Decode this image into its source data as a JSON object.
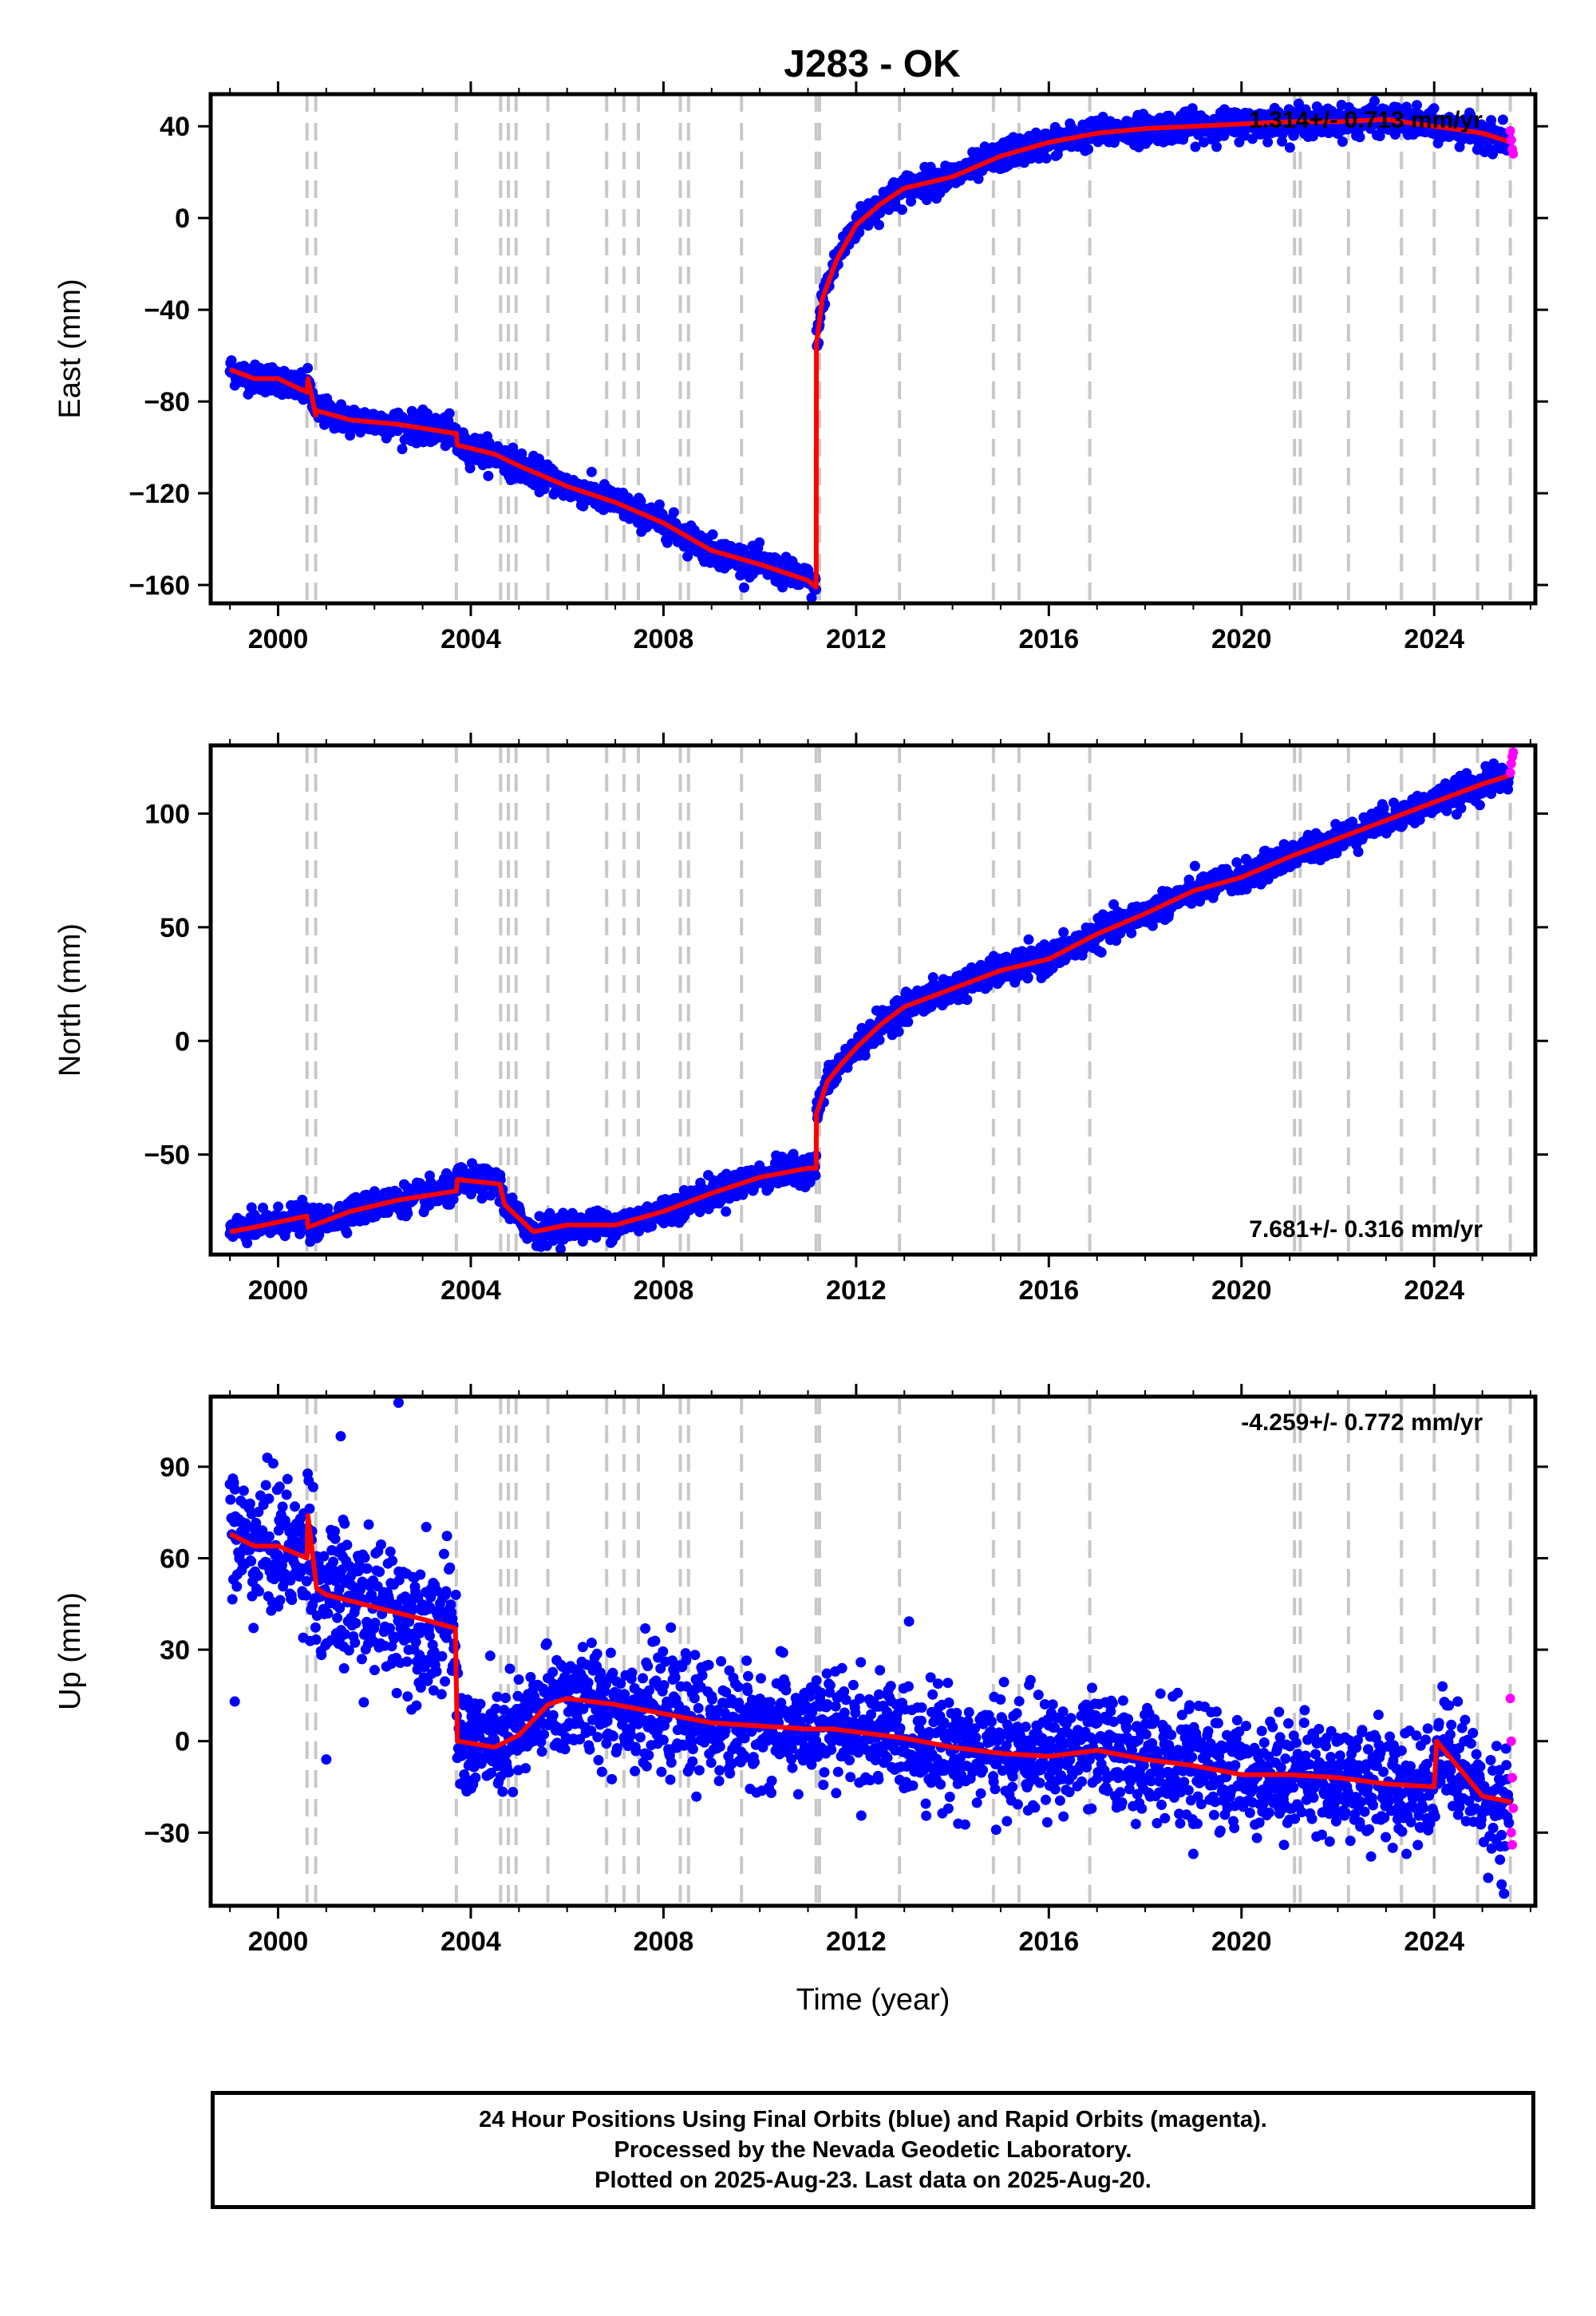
{
  "title": "J283 - OK",
  "colors": {
    "final_orbit_points": "#0000ff",
    "rapid_orbit_points": "#ff00ff",
    "model_line": "#ff0000",
    "event_lines": "#c8c8c8"
  },
  "event_lines": [
    2000.6,
    2000.78,
    2003.7,
    2004.62,
    2004.78,
    2004.94,
    2005.6,
    2006.82,
    2007.18,
    2007.48,
    2008.35,
    2008.52,
    2009.62,
    2011.17,
    2011.24,
    2012.9,
    2014.85,
    2015.38,
    2016.85,
    2021.1,
    2021.22,
    2022.22,
    2023.32,
    2024.0,
    2024.9,
    2025.58
  ],
  "footer": {
    "line1": "24 Hour Positions Using Final Orbits (blue) and Rapid Orbits (magenta).",
    "line2": "Processed by the Nevada Geodetic Laboratory.",
    "line3": "Plotted on 2025-Aug-23. Last data on 2025-Aug-20."
  },
  "chart_data": [
    {
      "type": "scatter",
      "panel": "east",
      "ylabel": "East (mm)",
      "xlabel": "",
      "xlim": [
        1998.6,
        2026.1
      ],
      "ylim": [
        -168,
        54
      ],
      "xticks": [
        2000,
        2004,
        2008,
        2012,
        2016,
        2020,
        2024
      ],
      "yticks": [
        -160,
        -120,
        -80,
        -40,
        0,
        40
      ],
      "velocity_label": "1.314+/- 0.713 mm/yr",
      "velocity_label_position": "top-right",
      "noise": 3,
      "outliers": [],
      "series": [
        {
          "role": "final_orbits_and_model",
          "model_x": [
            1999.0,
            1999.5,
            2000.0,
            2000.6,
            2000.62,
            2000.78,
            2000.8,
            2001.5,
            2002.5,
            2003.7,
            2003.72,
            2004.5,
            2005.0,
            2006.0,
            2007.0,
            2008.0,
            2009.0,
            2010.0,
            2011.0,
            2011.17,
            2011.175,
            2011.3,
            2011.6,
            2012.0,
            2012.5,
            2013.0,
            2014.0,
            2015.0,
            2016.0,
            2017.0,
            2018.0,
            2019.0,
            2020.0,
            2021.0,
            2022.0,
            2023.0,
            2024.0,
            2025.0,
            2025.6
          ],
          "model_y": [
            -66,
            -70,
            -70,
            -76,
            -70,
            -86,
            -84,
            -88,
            -90,
            -94,
            -99,
            -103,
            -108,
            -117,
            -124,
            -133,
            -145,
            -151,
            -158,
            -161,
            -55,
            -35,
            -18,
            -3,
            6,
            13,
            18,
            27,
            33,
            37,
            39,
            40,
            41,
            42,
            42,
            43,
            40,
            37,
            33
          ],
          "start": 1999.0,
          "end": 2025.55
        },
        {
          "role": "rapid_orbits",
          "x": [
            2025.58,
            2025.6,
            2025.62,
            2025.64
          ],
          "y": [
            38,
            34,
            30,
            28
          ]
        }
      ]
    },
    {
      "type": "scatter",
      "panel": "north",
      "ylabel": "North (mm)",
      "xlabel": "",
      "xlim": [
        1998.6,
        2026.1
      ],
      "ylim": [
        -94,
        130
      ],
      "xticks": [
        2000,
        2004,
        2008,
        2012,
        2016,
        2020,
        2024
      ],
      "yticks": [
        -50,
        0,
        50,
        100
      ],
      "velocity_label": "7.681+/- 0.316 mm/yr",
      "velocity_label_position": "bottom-right",
      "noise": 3,
      "outliers": [],
      "series": [
        {
          "role": "final_orbits_and_model",
          "model_x": [
            1999.0,
            1999.5,
            2000.6,
            2000.62,
            2001.5,
            2002.5,
            2003.7,
            2003.72,
            2004.6,
            2004.7,
            2005.3,
            2006.0,
            2007.0,
            2008.0,
            2009.0,
            2010.0,
            2011.0,
            2011.17,
            2011.175,
            2011.4,
            2011.7,
            2012.0,
            2012.5,
            2013.0,
            2014.0,
            2015.0,
            2016.0,
            2017.0,
            2018.0,
            2019.0,
            2020.0,
            2021.0,
            2022.0,
            2023.0,
            2024.0,
            2025.0,
            2025.6
          ],
          "model_y": [
            -84,
            -82,
            -77,
            -82,
            -75,
            -70,
            -66,
            -61,
            -63,
            -72,
            -84,
            -81,
            -81,
            -75,
            -67,
            -60,
            -56,
            -56,
            -32,
            -18,
            -10,
            -3,
            7,
            15,
            23,
            31,
            36,
            47,
            56,
            66,
            72,
            81,
            89,
            97,
            105,
            113,
            117
          ],
          "start": 1999.0,
          "end": 2025.55
        },
        {
          "role": "rapid_orbits",
          "x": [
            2025.58,
            2025.6,
            2025.62,
            2025.64
          ],
          "y": [
            118,
            122,
            125,
            127
          ]
        }
      ]
    },
    {
      "type": "scatter",
      "panel": "up",
      "ylabel": "Up (mm)",
      "xlabel": "Time (year)",
      "xlim": [
        1998.6,
        2026.1
      ],
      "ylim": [
        -54,
        113
      ],
      "xticks": [
        2000,
        2004,
        2008,
        2012,
        2016,
        2020,
        2024
      ],
      "yticks": [
        -30,
        0,
        30,
        60,
        90
      ],
      "velocity_label": "-4.259+/- 0.772 mm/yr",
      "velocity_label_position": "top-right",
      "noise": 9,
      "outliers": [
        [
          1999.1,
          13
        ],
        [
          2001.0,
          -6
        ],
        [
          2001.3,
          100
        ],
        [
          2002.5,
          111
        ],
        [
          2019.0,
          -37
        ],
        [
          2025.4,
          -47
        ],
        [
          2025.45,
          -50
        ]
      ],
      "series": [
        {
          "role": "final_orbits_and_model",
          "model_x": [
            1999.0,
            1999.5,
            2000.0,
            2000.6,
            2000.62,
            2000.8,
            2001.0,
            2002.0,
            2003.0,
            2003.68,
            2003.72,
            2004.5,
            2005.0,
            2005.6,
            2006.0,
            2007.0,
            2008.0,
            2009.0,
            2010.0,
            2011.0,
            2011.5,
            2012.0,
            2013.0,
            2014.0,
            2015.0,
            2016.0,
            2017.0,
            2018.0,
            2019.0,
            2020.0,
            2021.0,
            2022.0,
            2023.0,
            2024.0,
            2024.05,
            2025.0,
            2025.6
          ],
          "model_y": [
            68,
            64,
            64,
            60,
            74,
            50,
            48,
            44,
            40,
            37,
            0,
            -2,
            2,
            12,
            14,
            12,
            9,
            6,
            5,
            4,
            4,
            3,
            1,
            -2,
            -4,
            -5,
            -3,
            -6,
            -8,
            -11,
            -11,
            -12,
            -14,
            -15,
            0,
            -18,
            -20
          ],
          "start": 1999.0,
          "end": 2025.55
        },
        {
          "role": "rapid_orbits",
          "x": [
            2025.58,
            2025.6,
            2025.62,
            2025.64,
            2025.6,
            2025.62
          ],
          "y": [
            14,
            0,
            -12,
            -22,
            -30,
            -34
          ]
        }
      ]
    }
  ]
}
